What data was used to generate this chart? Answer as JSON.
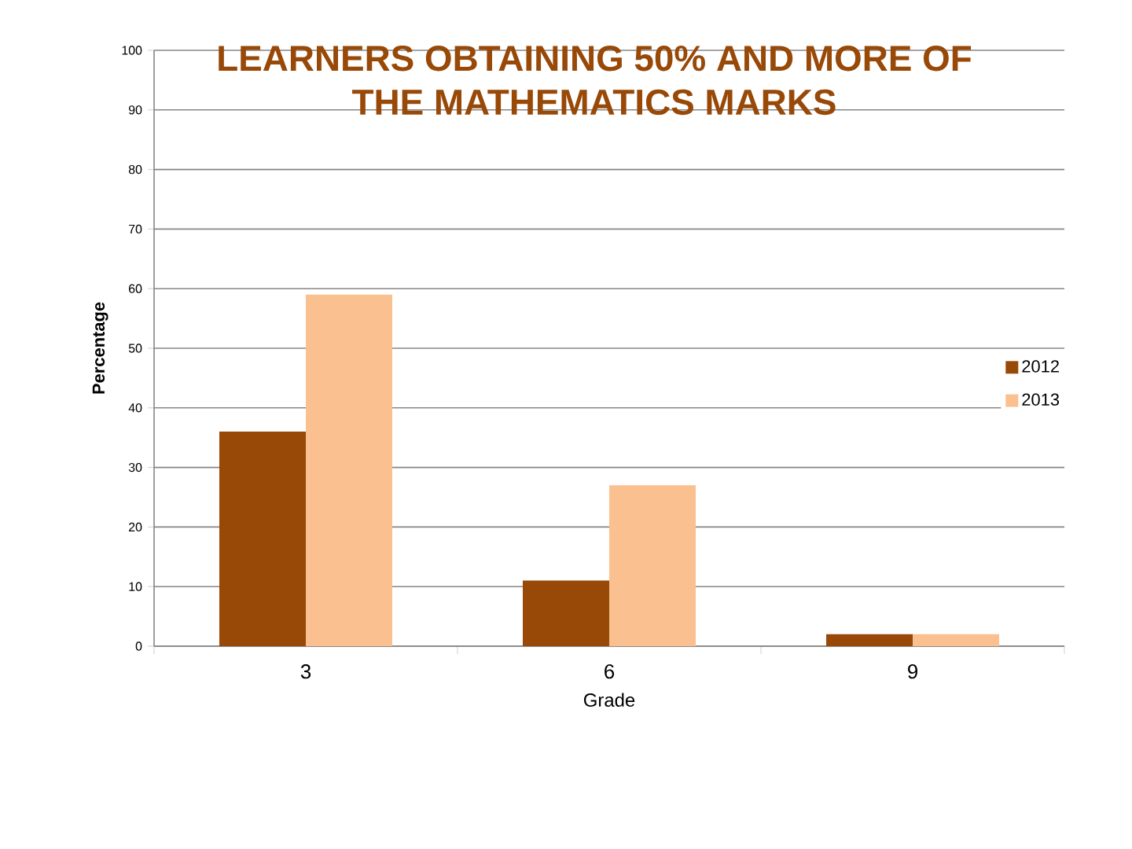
{
  "chart_data": {
    "type": "bar",
    "title": "LEARNERS OBTAINING 50% AND MORE OF THE MATHEMATICS MARKS",
    "xlabel": "Grade",
    "ylabel": "Percentage",
    "categories": [
      "3",
      "6",
      "9"
    ],
    "series": [
      {
        "name": "2012",
        "color": "#984807",
        "values": [
          36,
          11,
          2
        ]
      },
      {
        "name": "2013",
        "color": "#fac090",
        "values": [
          59,
          27,
          2
        ]
      }
    ],
    "ylim": [
      0,
      100
    ],
    "yticks": [
      0,
      10,
      20,
      30,
      40,
      50,
      60,
      70,
      80,
      90,
      100
    ],
    "grid": "y",
    "legend": "right"
  }
}
